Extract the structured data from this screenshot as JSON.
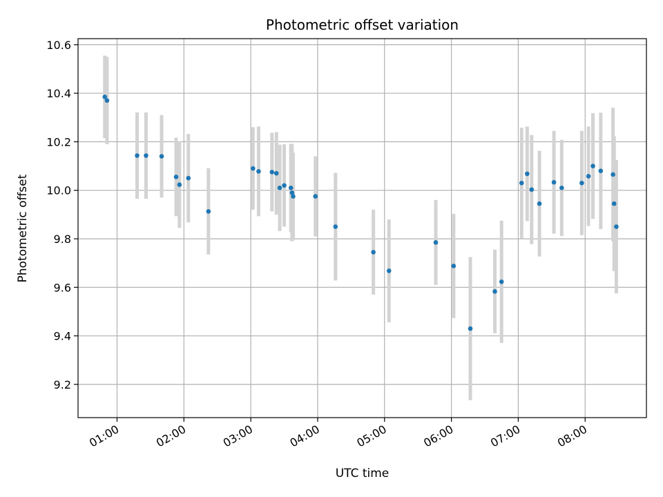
{
  "chart_data": {
    "type": "scatter",
    "title": "Photometric offset variation",
    "xlabel": "UTC time",
    "ylabel": "Photometric offset",
    "xlim": [
      "00:25",
      "08:55"
    ],
    "ylim": [
      9.063,
      10.625
    ],
    "grid": true,
    "x_tick_labels": [
      "01:00",
      "02:00",
      "03:00",
      "04:00",
      "05:00",
      "06:00",
      "07:00",
      "08:00"
    ],
    "y_tick_labels": [
      "9.2",
      "9.4",
      "9.6",
      "9.8",
      "10.0",
      "10.2",
      "10.4",
      "10.6"
    ],
    "colors": {
      "marker": "#1f77b4",
      "errorbar": "#d3d3d3",
      "grid": "#b0b0b0"
    },
    "points": [
      {
        "x": "00:49",
        "y": 10.385,
        "err": 0.17
      },
      {
        "x": "00:51",
        "y": 10.37,
        "err": 0.18
      },
      {
        "x": "01:18",
        "y": 10.143,
        "err": 0.178
      },
      {
        "x": "01:26",
        "y": 10.143,
        "err": 0.178
      },
      {
        "x": "01:40",
        "y": 10.14,
        "err": 0.17
      },
      {
        "x": "01:53",
        "y": 10.055,
        "err": 0.162
      },
      {
        "x": "01:56",
        "y": 10.023,
        "err": 0.178
      },
      {
        "x": "02:04",
        "y": 10.05,
        "err": 0.182
      },
      {
        "x": "02:22",
        "y": 9.913,
        "err": 0.178
      },
      {
        "x": "03:02",
        "y": 10.09,
        "err": 0.17
      },
      {
        "x": "03:07",
        "y": 10.078,
        "err": 0.185
      },
      {
        "x": "03:19",
        "y": 10.075,
        "err": 0.162
      },
      {
        "x": "03:23",
        "y": 10.07,
        "err": 0.17
      },
      {
        "x": "03:26",
        "y": 10.01,
        "err": 0.178
      },
      {
        "x": "03:30",
        "y": 10.02,
        "err": 0.17
      },
      {
        "x": "03:36",
        "y": 10.01,
        "err": 0.182
      },
      {
        "x": "03:37",
        "y": 9.99,
        "err": 0.2
      },
      {
        "x": "03:38",
        "y": 9.975,
        "err": 0.18
      },
      {
        "x": "03:58",
        "y": 9.975,
        "err": 0.165
      },
      {
        "x": "04:16",
        "y": 9.85,
        "err": 0.222
      },
      {
        "x": "04:50",
        "y": 9.745,
        "err": 0.175
      },
      {
        "x": "05:04",
        "y": 9.668,
        "err": 0.212
      },
      {
        "x": "05:46",
        "y": 9.785,
        "err": 0.175
      },
      {
        "x": "06:02",
        "y": 9.688,
        "err": 0.215
      },
      {
        "x": "06:17",
        "y": 9.43,
        "err": 0.295
      },
      {
        "x": "06:39",
        "y": 9.583,
        "err": 0.172
      },
      {
        "x": "06:45",
        "y": 9.623,
        "err": 0.252
      },
      {
        "x": "07:03",
        "y": 10.03,
        "err": 0.228
      },
      {
        "x": "07:08",
        "y": 10.068,
        "err": 0.195
      },
      {
        "x": "07:12",
        "y": 10.003,
        "err": 0.225
      },
      {
        "x": "07:19",
        "y": 9.945,
        "err": 0.218
      },
      {
        "x": "07:32",
        "y": 10.033,
        "err": 0.212
      },
      {
        "x": "07:39",
        "y": 10.01,
        "err": 0.198
      },
      {
        "x": "07:57",
        "y": 10.03,
        "err": 0.215
      },
      {
        "x": "08:03",
        "y": 10.058,
        "err": 0.205
      },
      {
        "x": "08:07",
        "y": 10.1,
        "err": 0.218
      },
      {
        "x": "08:14",
        "y": 10.08,
        "err": 0.24
      },
      {
        "x": "08:25",
        "y": 10.065,
        "err": 0.275
      },
      {
        "x": "08:26",
        "y": 9.945,
        "err": 0.278
      },
      {
        "x": "08:28",
        "y": 9.85,
        "err": 0.275
      }
    ]
  }
}
